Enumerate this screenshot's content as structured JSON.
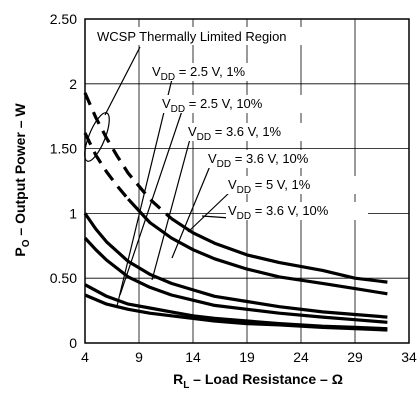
{
  "chart_data": {
    "type": "line",
    "title": "",
    "xlabel": {
      "main": "R",
      "sub": "L",
      "rest": " – Load Resistance – Ω"
    },
    "ylabel": {
      "main": "P",
      "sub": "O",
      "rest": " – Output Power – W"
    },
    "xlim": [
      4,
      34
    ],
    "ylim": [
      0,
      2.5
    ],
    "xticks": [
      4,
      9,
      14,
      19,
      24,
      29,
      34
    ],
    "yticks": [
      0,
      0.5,
      1,
      1.5,
      2,
      2.5
    ],
    "ytick_labels": [
      "0",
      "0.50",
      "1",
      "1.50",
      "2",
      "2.50"
    ],
    "grid": true,
    "region_label": "WCSP Thermally Limited Region",
    "series": [
      {
        "name": "VDD = 3.6 V, 10%",
        "style": "dashed",
        "x": [
          4,
          5,
          6,
          7,
          8,
          10,
          12
        ],
        "y": [
          1.93,
          1.74,
          1.58,
          1.44,
          1.31,
          1.11,
          0.96
        ]
      },
      {
        "name": "VDD = 3.6 V, 10%",
        "style": "solid",
        "x": [
          12,
          14,
          16,
          19,
          22,
          26,
          29,
          32
        ],
        "y": [
          0.96,
          0.85,
          0.77,
          0.68,
          0.62,
          0.56,
          0.5,
          0.47
        ]
      },
      {
        "name": "VDD = 3.6 V, 1%",
        "style": "dashed",
        "x": [
          4,
          5,
          6,
          7,
          8
        ],
        "y": [
          1.62,
          1.45,
          1.32,
          1.21,
          1.11
        ]
      },
      {
        "name": "VDD = 3.6 V, 1%",
        "style": "solid",
        "x": [
          8,
          10,
          12,
          14,
          16,
          19,
          22,
          26,
          29,
          32
        ],
        "y": [
          1.11,
          0.93,
          0.81,
          0.72,
          0.65,
          0.57,
          0.51,
          0.46,
          0.42,
          0.38
        ]
      },
      {
        "name": "VDD = 2.5 V, 10%",
        "style": "solid",
        "x": [
          4,
          5,
          6,
          8,
          10,
          12,
          14,
          16,
          19,
          22,
          26,
          29,
          32
        ],
        "y": [
          1.0,
          0.88,
          0.78,
          0.63,
          0.53,
          0.46,
          0.41,
          0.36,
          0.32,
          0.28,
          0.24,
          0.22,
          0.2
        ]
      },
      {
        "name": "VDD = 2.5 V, 1%",
        "style": "solid",
        "x": [
          4,
          5,
          6,
          8,
          10,
          12,
          14,
          16,
          19,
          22,
          26,
          29,
          32
        ],
        "y": [
          0.81,
          0.72,
          0.64,
          0.51,
          0.43,
          0.37,
          0.33,
          0.29,
          0.26,
          0.23,
          0.2,
          0.18,
          0.16
        ]
      },
      {
        "name": "VDD = 5 V, 1%",
        "style": "solid",
        "x": [
          4,
          6,
          8,
          10,
          12,
          14,
          16,
          19,
          22,
          26,
          29,
          32
        ],
        "y": [
          0.45,
          0.36,
          0.3,
          0.27,
          0.24,
          0.21,
          0.19,
          0.17,
          0.15,
          0.13,
          0.12,
          0.11
        ]
      },
      {
        "name": "VDD = 3.6 V, 10%",
        "style": "solid",
        "x": [
          4,
          6,
          8,
          10,
          12,
          14,
          16,
          19,
          22,
          26,
          29,
          32
        ],
        "y": [
          0.37,
          0.3,
          0.26,
          0.23,
          0.21,
          0.19,
          0.17,
          0.15,
          0.14,
          0.12,
          0.11,
          0.1
        ]
      }
    ],
    "annotations": [
      {
        "sym": "V",
        "sub": "DD",
        "rest": " = 2.5 V, 1%"
      },
      {
        "sym": "V",
        "sub": "DD",
        "rest": " = 2.5 V, 10%"
      },
      {
        "sym": "V",
        "sub": "DD",
        "rest": " = 3.6 V, 1%"
      },
      {
        "sym": "V",
        "sub": "DD",
        "rest": " = 3.6 V, 10%"
      },
      {
        "sym": "V",
        "sub": "DD",
        "rest": " = 5 V, 1%"
      },
      {
        "sym": "V",
        "sub": "DD",
        "rest": " = 3.6 V, 10%"
      }
    ]
  }
}
